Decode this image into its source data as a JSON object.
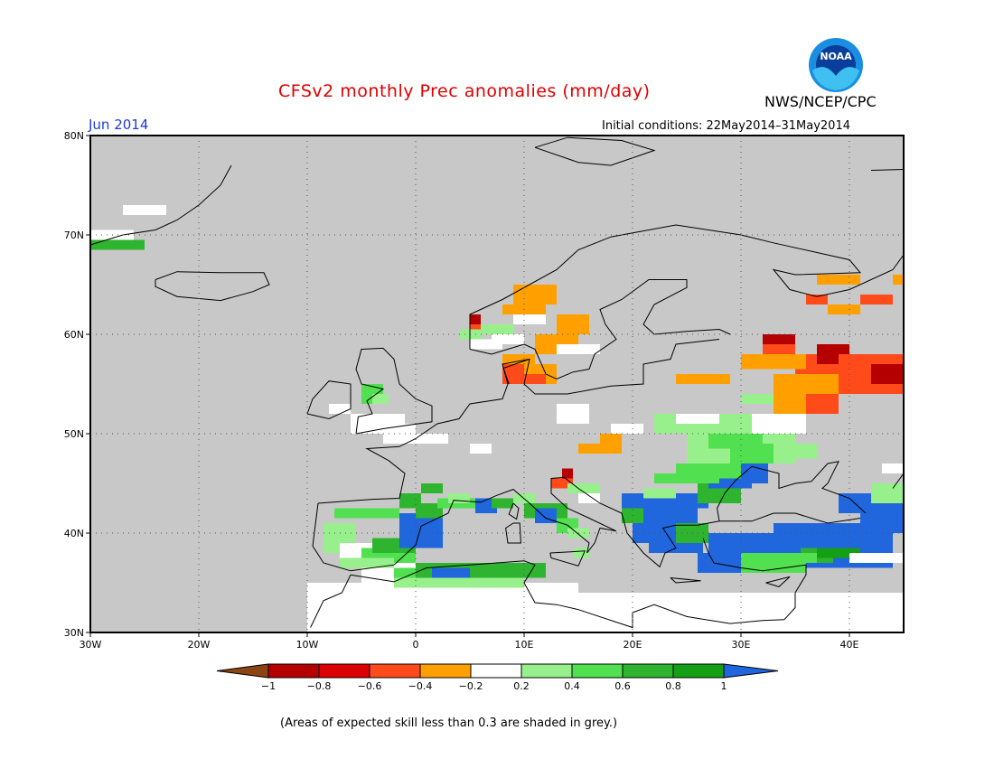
{
  "header": {
    "title": "CFSv2 monthly Prec anomalies (mm/day)",
    "agency": "NWS/NCEP/CPC",
    "month": "Jun 2014",
    "initial_conditions": "Initial conditions: 22May2014–31May2014",
    "logo_text": "NOAA"
  },
  "map": {
    "lat_labels": [
      "80N",
      "70N",
      "60N",
      "50N",
      "40N",
      "30N"
    ],
    "lon_labels": [
      "30W",
      "20W",
      "10W",
      "0",
      "10E",
      "20E",
      "30E",
      "40E"
    ],
    "lon_range": [
      -30,
      45
    ],
    "lat_range": [
      30,
      80
    ],
    "gridlines": "dotted",
    "land_default": "grey",
    "colors": {
      "grey": "#c8c8c8",
      "white": "#ffffff",
      "coast": "#000000"
    }
  },
  "colorbar": {
    "tick_labels": [
      "−1",
      "−0.8",
      "−0.6",
      "−0.4",
      "−0.2",
      "0.2",
      "0.4",
      "0.6",
      "0.8",
      "1"
    ],
    "colors": [
      "#8b4513",
      "#b40000",
      "#dc0000",
      "#ff4a1a",
      "#ffa000",
      "#ffffff",
      "#98f08c",
      "#50e050",
      "#2eb42e",
      "#14a014",
      "#2066dc"
    ]
  },
  "anomalies": {
    "regions": [
      {
        "label": "Spain/Iberia",
        "category": "0.8 to 1+",
        "color": "#2066dc"
      },
      {
        "label": "Balkans",
        "category": "1+",
        "color": "#2066dc"
      },
      {
        "label": "Turkey",
        "category": "1+",
        "color": "#2066dc"
      },
      {
        "label": "Western Russia",
        "category": "-0.6 to -0.8",
        "color": "#ff4a1a"
      },
      {
        "label": "Scandinavia",
        "category": "-0.2 to -0.6",
        "color": "#ffa000"
      }
    ]
  },
  "footnote": "(Areas of expected skill less than 0.3 are shaded in grey.)"
}
